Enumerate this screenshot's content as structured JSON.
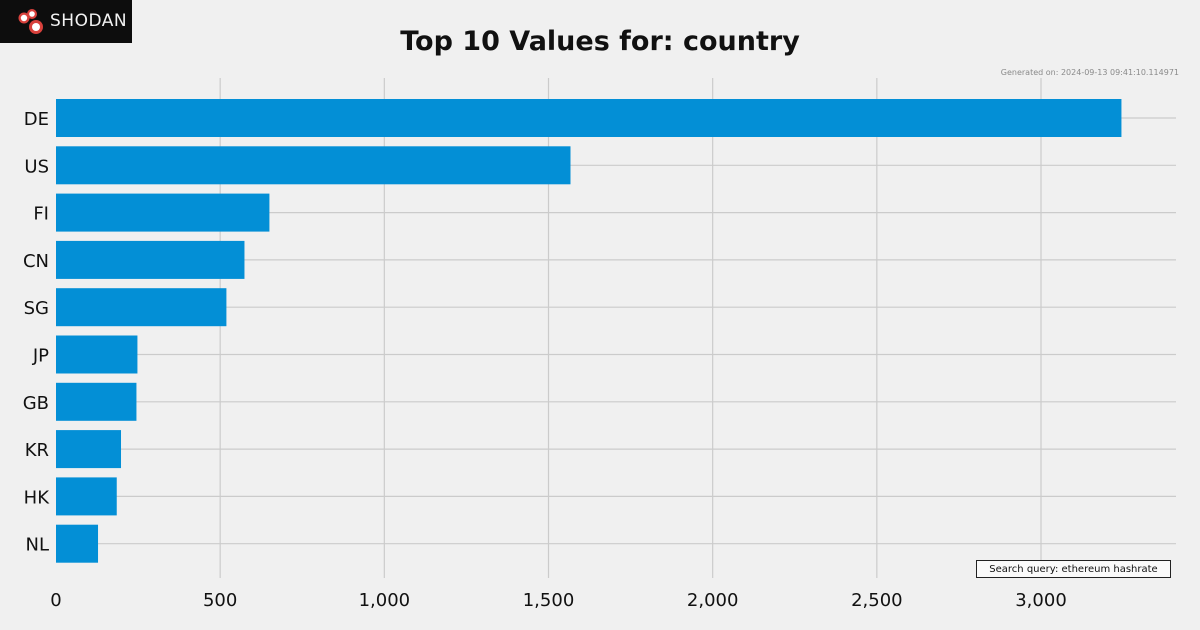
{
  "brand": {
    "name": "SHODAN",
    "logo_icon": "shodan-logo-icon"
  },
  "chart_data": {
    "type": "bar",
    "orientation": "horizontal",
    "title": "Top 10 Values for: country",
    "generated": "Generated on: 2024-09-13 09:41:10.114971",
    "search_query": "Search query: ethereum hashrate",
    "categories": [
      "DE",
      "US",
      "FI",
      "CN",
      "SG",
      "JP",
      "GB",
      "KR",
      "HK",
      "NL"
    ],
    "values": [
      3245,
      1567,
      650,
      574,
      519,
      248,
      245,
      198,
      185,
      128
    ],
    "xlim": [
      0,
      3400
    ],
    "xticks": [
      0,
      500,
      1000,
      1500,
      2000,
      2500,
      3000
    ],
    "xtick_labels": [
      "0",
      "500",
      "1,000",
      "1,500",
      "2,000",
      "2,500",
      "3,000"
    ],
    "grid": true,
    "bar_color": "#038fd6",
    "background": "#f0f0f0",
    "grid_color": "#cbcbcb"
  }
}
